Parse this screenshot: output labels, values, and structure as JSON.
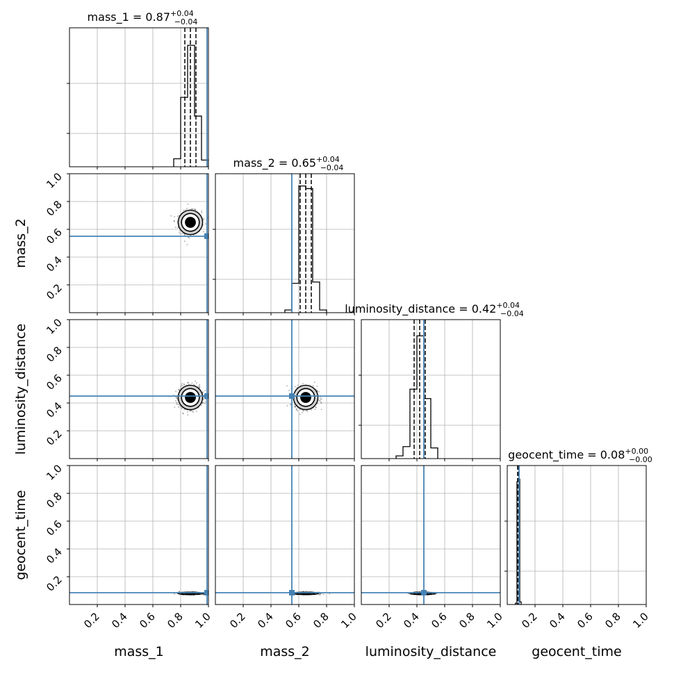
{
  "chart_data": {
    "type": "corner",
    "parameters": [
      "mass_1",
      "mass_2",
      "luminosity_distance",
      "geocent_time"
    ],
    "axis_labels": [
      "mass_1",
      "mass_2",
      "luminosity_distance",
      "geocent_time"
    ],
    "titles": [
      {
        "name": "mass_1",
        "eq": " = 0.87",
        "sup": "+0.04",
        "sub": "−0.04"
      },
      {
        "name": "mass_2",
        "eq": " = 0.65",
        "sup": "+0.04",
        "sub": "−0.04"
      },
      {
        "name": "luminosity_distance",
        "eq": " = 0.42",
        "sup": "+0.04",
        "sub": "−0.04"
      },
      {
        "name": "geocent_time",
        "eq": " = 0.08",
        "sup": "+0.00",
        "sub": "−0.00"
      }
    ],
    "axis_range": [
      0,
      1
    ],
    "tick_labels": [
      "0.2",
      "0.4",
      "0.6",
      "0.8",
      "1.0"
    ],
    "tick_values": [
      0.2,
      0.4,
      0.6,
      0.8,
      1.0
    ],
    "grid": true,
    "truths": [
      0.99,
      0.55,
      0.45,
      0.085
    ],
    "truth_color": "#4682b4",
    "medians": [
      0.87,
      0.65,
      0.42,
      0.08
    ],
    "quantiles": [
      [
        0.83,
        0.87,
        0.91
      ],
      [
        0.61,
        0.65,
        0.69
      ],
      [
        0.38,
        0.42,
        0.46
      ],
      [
        0.075,
        0.08,
        0.085
      ]
    ],
    "histograms": [
      {
        "edges": [
          0.75,
          0.8,
          0.85,
          0.9,
          0.95,
          1.0
        ],
        "counts": [
          0.06,
          0.52,
          0.91,
          0.38,
          0.05
        ],
        "ymax": 1.0
      },
      {
        "edges": [
          0.5,
          0.55,
          0.6,
          0.65,
          0.7,
          0.75,
          0.8
        ],
        "counts": [
          0.02,
          0.22,
          0.95,
          0.93,
          0.23,
          0.02
        ],
        "ymax": 1.0
      },
      {
        "edges": [
          0.25,
          0.3,
          0.35,
          0.4,
          0.45,
          0.5,
          0.55
        ],
        "counts": [
          0.02,
          0.09,
          0.52,
          0.92,
          0.45,
          0.08
        ],
        "ymax": 1.0
      },
      {
        "edges": [
          0.05,
          0.06,
          0.07,
          0.08,
          0.09,
          0.1
        ],
        "counts": [
          0.0,
          0.01,
          0.92,
          0.94,
          0.02
        ],
        "ymax": 1.0
      }
    ],
    "posterior": {
      "mean": [
        0.87,
        0.65,
        0.44,
        0.08
      ],
      "std": [
        0.04,
        0.04,
        0.04,
        0.004
      ]
    },
    "colors": {
      "line": "#000000",
      "grid": "#b0b0b0",
      "truth": "#4682b4",
      "point": "#000000"
    }
  }
}
